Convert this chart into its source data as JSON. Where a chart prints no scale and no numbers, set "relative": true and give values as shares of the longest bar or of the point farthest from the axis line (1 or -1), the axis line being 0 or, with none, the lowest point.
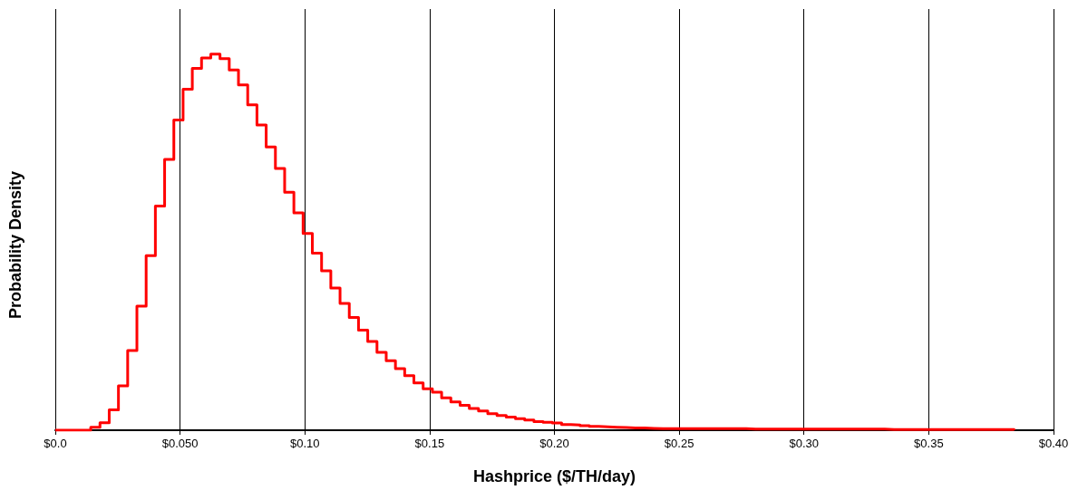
{
  "chart_data": {
    "type": "step",
    "relative": true,
    "xlabel": "Hashprice ($/TH/day)",
    "ylabel": "Probability Density",
    "xlim": [
      0,
      0.4
    ],
    "xticks": [
      {
        "value": 0,
        "label": "$0.0"
      },
      {
        "value": 0.05,
        "label": "$0.050"
      },
      {
        "value": 0.1,
        "label": "$0.10"
      },
      {
        "value": 0.15,
        "label": "$0.15"
      },
      {
        "value": 0.2,
        "label": "$0.20"
      },
      {
        "value": 0.25,
        "label": "$0.25"
      },
      {
        "value": 0.3,
        "label": "$0.30"
      },
      {
        "value": 0.35,
        "label": "$0.35"
      },
      {
        "value": 0.4,
        "label": "$0.40"
      }
    ],
    "grid": "x",
    "marker": "none",
    "line_style": "solid",
    "x": [
      0,
      0.0142,
      0.0179,
      0.0216,
      0.0253,
      0.029,
      0.0327,
      0.0364,
      0.0401,
      0.0438,
      0.0475,
      0.0512,
      0.0549,
      0.0586,
      0.0623,
      0.066,
      0.0697,
      0.0734,
      0.0771,
      0.0808,
      0.0845,
      0.0882,
      0.0919,
      0.0956,
      0.0993,
      0.103,
      0.1067,
      0.1104,
      0.1141,
      0.1178,
      0.1215,
      0.1252,
      0.1289,
      0.1326,
      0.1363,
      0.14,
      0.1437,
      0.1474,
      0.1511,
      0.1548,
      0.1585,
      0.1622,
      0.1659,
      0.1696,
      0.1733,
      0.177,
      0.1807,
      0.1844,
      0.1881,
      0.1918,
      0.1955,
      0.1992,
      0.2029,
      0.2066,
      0.2103,
      0.214,
      0.2177,
      0.2214,
      0.2251,
      0.2288,
      0.2325,
      0.2362,
      0.2399,
      0.2436,
      0.2473,
      0.251,
      0.2547,
      0.2584,
      0.2621,
      0.2658,
      0.2695,
      0.2732,
      0.2769,
      0.2806,
      0.2843,
      0.288,
      0.2917,
      0.2954,
      0.2991,
      0.3028,
      0.3065,
      0.3102,
      0.3139,
      0.3176,
      0.3213,
      0.325,
      0.3287,
      0.3324,
      0.3361,
      0.3398,
      0.3435,
      0.3472,
      0.3509,
      0.3546,
      0.3583,
      0.362,
      0.3657,
      0.3694,
      0.3731,
      0.3768,
      0.3805,
      0.3842
    ],
    "series": [
      {
        "color": "#ff0000",
        "values": [
          0,
          0.008,
          0.02,
          0.054,
          0.118,
          0.212,
          0.33,
          0.464,
          0.596,
          0.72,
          0.825,
          0.907,
          0.962,
          0.99,
          1,
          0.988,
          0.958,
          0.918,
          0.865,
          0.812,
          0.753,
          0.696,
          0.633,
          0.578,
          0.523,
          0.471,
          0.424,
          0.378,
          0.337,
          0.3,
          0.266,
          0.236,
          0.207,
          0.185,
          0.164,
          0.145,
          0.126,
          0.11,
          0.101,
          0.086,
          0.075,
          0.066,
          0.058,
          0.051,
          0.044,
          0.039,
          0.035,
          0.031,
          0.027,
          0.023,
          0.021,
          0.019,
          0.015,
          0.014,
          0.012,
          0.01,
          0.009,
          0.008,
          0.007,
          0.006,
          0.006,
          0.005,
          0.004,
          0.004,
          0.004,
          0.004,
          0.004,
          0.004,
          0.004,
          0.004,
          0.004,
          0.004,
          0.003,
          0.003,
          0.003,
          0.003,
          0.003,
          0.003,
          0.003,
          0.003,
          0.003,
          0.003,
          0.003,
          0.003,
          0.003,
          0.003,
          0.003,
          0.002,
          0.002,
          0.002,
          0.002,
          0.002,
          0.002,
          0.002,
          0.002,
          0.002,
          0.002,
          0.002,
          0.002,
          0.002,
          0.002,
          0
        ]
      }
    ]
  }
}
